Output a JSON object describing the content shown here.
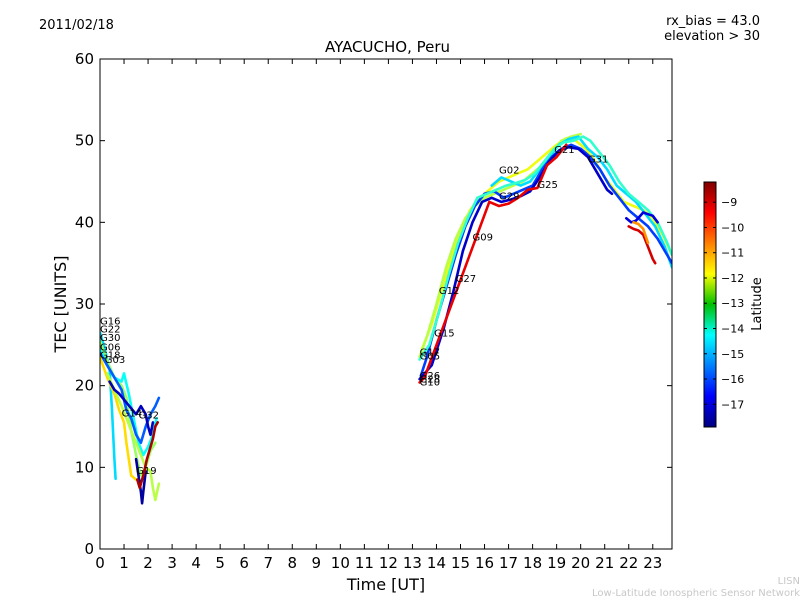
{
  "header": {
    "date": "2011/02/18",
    "rx_bias": "rx_bias = 43.0",
    "elevation": "elevation > 30",
    "station_title": "AYACUCHO, Peru"
  },
  "footer": {
    "network_short": "LISN",
    "network_full": "Low-Latitude Ionospheric Sensor Network"
  },
  "chart_data": {
    "type": "scatter",
    "title": "AYACUCHO, Peru",
    "xlabel": "Time [UT]",
    "ylabel": "TEC [UNITS]",
    "xlim": [
      0,
      23.8
    ],
    "ylim": [
      0,
      60
    ],
    "xticks": [
      "0",
      "1",
      "2",
      "3",
      "4",
      "5",
      "6",
      "7",
      "8",
      "9",
      "10",
      "11",
      "12",
      "13",
      "14",
      "15",
      "16",
      "17",
      "18",
      "19",
      "20",
      "21",
      "22",
      "23"
    ],
    "yticks": [
      "0",
      "10",
      "20",
      "30",
      "40",
      "50",
      "60"
    ],
    "colorbar": {
      "label": "Latitude",
      "range": [
        -17.9,
        -8.2
      ],
      "ticks": [
        "-9",
        "-10",
        "-11",
        "-12",
        "-13",
        "-14",
        "-15",
        "-16",
        "-17"
      ],
      "colormap": "jet",
      "position": "right"
    },
    "grid": false,
    "satellite_labels": [
      {
        "prn": "G16",
        "time": 0.0,
        "tec": 27.5
      },
      {
        "prn": "G22",
        "time": 0.0,
        "tec": 26.5
      },
      {
        "prn": "G30",
        "time": 0.0,
        "tec": 25.5
      },
      {
        "prn": "G06",
        "time": 0.0,
        "tec": 24.3
      },
      {
        "prn": "G18",
        "time": 0.0,
        "tec": 23.3
      },
      {
        "prn": "G03",
        "time": 0.2,
        "tec": 22.8
      },
      {
        "prn": "G14",
        "time": 0.9,
        "tec": 16.2
      },
      {
        "prn": "G32",
        "time": 1.6,
        "tec": 16.0
      },
      {
        "prn": "G19",
        "time": 1.5,
        "tec": 9.2
      },
      {
        "prn": "G17",
        "time": 13.3,
        "tec": 23.7
      },
      {
        "prn": "G05",
        "time": 13.3,
        "tec": 23.2
      },
      {
        "prn": "G26",
        "time": 13.3,
        "tec": 20.8
      },
      {
        "prn": "G28",
        "time": 13.3,
        "tec": 20.4
      },
      {
        "prn": "G10",
        "time": 13.3,
        "tec": 20.0
      },
      {
        "prn": "G15",
        "time": 13.9,
        "tec": 26.0
      },
      {
        "prn": "G12",
        "time": 14.1,
        "tec": 31.2
      },
      {
        "prn": "G27",
        "time": 14.8,
        "tec": 32.7
      },
      {
        "prn": "G09",
        "time": 15.5,
        "tec": 37.8
      },
      {
        "prn": "G29",
        "time": 16.6,
        "tec": 42.8
      },
      {
        "prn": "G02",
        "time": 16.6,
        "tec": 46.0
      },
      {
        "prn": "G25",
        "time": 18.2,
        "tec": 44.2
      },
      {
        "prn": "G21",
        "time": 18.9,
        "tec": 48.5
      },
      {
        "prn": "G31",
        "time": 20.3,
        "tec": 47.3
      }
    ],
    "series": [
      {
        "lat": -14.6,
        "points": [
          [
            0.0,
            26.5
          ],
          [
            0.2,
            24.5
          ],
          [
            0.4,
            22.0
          ],
          [
            0.5,
            17.0
          ],
          [
            0.6,
            11.0
          ],
          [
            0.65,
            8.6
          ]
        ]
      },
      {
        "lat": -12.8,
        "points": [
          [
            0.0,
            25.5
          ],
          [
            0.3,
            23.0
          ],
          [
            0.6,
            21.0
          ],
          [
            0.9,
            20.0
          ],
          [
            1.1,
            18.5
          ],
          [
            1.3,
            14.5
          ],
          [
            1.5,
            11.5
          ],
          [
            1.7,
            9.0
          ],
          [
            1.9,
            10.0
          ],
          [
            2.1,
            12.0
          ],
          [
            2.3,
            13.0
          ]
        ]
      },
      {
        "lat": -14.2,
        "points": [
          [
            0.0,
            24.5
          ],
          [
            0.3,
            22.5
          ],
          [
            0.6,
            21.0
          ],
          [
            0.9,
            20.5
          ],
          [
            1.0,
            21.5
          ],
          [
            1.2,
            19.0
          ],
          [
            1.4,
            16.0
          ],
          [
            1.6,
            13.0
          ],
          [
            1.8,
            11.5
          ],
          [
            2.0,
            12.5
          ],
          [
            2.2,
            14.0
          ],
          [
            2.35,
            16.0
          ]
        ]
      },
      {
        "lat": -15.8,
        "points": [
          [
            0.0,
            24.0
          ],
          [
            0.3,
            22.5
          ],
          [
            0.6,
            21.0
          ],
          [
            0.9,
            19.5
          ],
          [
            1.1,
            17.0
          ],
          [
            1.3,
            16.0
          ],
          [
            1.5,
            14.0
          ],
          [
            1.7,
            13.0
          ],
          [
            1.9,
            15.0
          ],
          [
            2.1,
            16.5
          ],
          [
            2.3,
            17.5
          ],
          [
            2.45,
            18.5
          ]
        ]
      },
      {
        "lat": -11.5,
        "points": [
          [
            0.0,
            23.5
          ],
          [
            0.3,
            21.0
          ],
          [
            0.6,
            19.0
          ],
          [
            0.8,
            17.0
          ],
          [
            1.0,
            15.5
          ],
          [
            1.1,
            13.0
          ],
          [
            1.2,
            11.0
          ],
          [
            1.3,
            9.0
          ],
          [
            1.5,
            8.5
          ]
        ]
      },
      {
        "lat": -12.5,
        "points": [
          [
            0.3,
            21.5
          ],
          [
            0.6,
            19.5
          ],
          [
            0.9,
            17.5
          ],
          [
            1.1,
            16.0
          ],
          [
            1.3,
            14.5
          ],
          [
            1.5,
            13.0
          ],
          [
            1.7,
            11.5
          ],
          [
            1.9,
            10.0
          ],
          [
            2.1,
            9.5
          ],
          [
            2.2,
            7.5
          ],
          [
            2.3,
            6.0
          ],
          [
            2.45,
            8.0
          ]
        ]
      },
      {
        "lat": -17.3,
        "points": [
          [
            0.4,
            20.5
          ],
          [
            0.6,
            19.5
          ],
          [
            0.8,
            19.0
          ],
          [
            1.5,
            16.5
          ],
          [
            1.7,
            17.5
          ],
          [
            1.9,
            16.5
          ],
          [
            2.0,
            15.0
          ],
          [
            2.1,
            14.0
          ],
          [
            2.2,
            15.5
          ]
        ]
      },
      {
        "lat": -17.6,
        "points": [
          [
            1.5,
            11.0
          ],
          [
            1.6,
            9.0
          ],
          [
            1.7,
            7.0
          ],
          [
            1.75,
            5.6
          ],
          [
            1.8,
            7.0
          ],
          [
            1.9,
            9.5
          ]
        ]
      },
      {
        "lat": -8.6,
        "points": [
          [
            1.55,
            8.5
          ],
          [
            1.65,
            7.5
          ],
          [
            1.8,
            9.0
          ],
          [
            1.95,
            11.0
          ],
          [
            2.05,
            12.0
          ],
          [
            2.2,
            13.5
          ],
          [
            2.3,
            15.0
          ],
          [
            2.4,
            15.5
          ]
        ]
      },
      {
        "lat": -12.0,
        "points": [
          [
            13.4,
            24.5
          ],
          [
            13.8,
            27.5
          ],
          [
            14.2,
            31.5
          ],
          [
            14.6,
            35.5
          ],
          [
            15.0,
            39.0
          ],
          [
            15.4,
            41.5
          ],
          [
            15.8,
            43.0
          ],
          [
            16.2,
            44.0
          ],
          [
            16.6,
            45.0
          ],
          [
            17.0,
            45.5
          ],
          [
            17.4,
            46.0
          ],
          [
            17.8,
            46.5
          ],
          [
            18.2,
            47.5
          ],
          [
            18.6,
            48.5
          ],
          [
            19.0,
            49.5
          ],
          [
            19.4,
            50.3
          ],
          [
            19.8,
            50.0
          ],
          [
            20.2,
            49.0
          ],
          [
            20.6,
            47.5
          ],
          [
            21.0,
            45.5
          ],
          [
            21.4,
            44.0
          ],
          [
            21.8,
            42.5
          ],
          [
            22.2,
            42.0
          ],
          [
            22.6,
            41.5
          ],
          [
            23.0,
            40.5
          ],
          [
            23.4,
            38.5
          ],
          [
            23.8,
            36.0
          ]
        ]
      },
      {
        "lat": -12.5,
        "points": [
          [
            13.3,
            23.5
          ],
          [
            13.6,
            26.0
          ],
          [
            14.0,
            30.0
          ],
          [
            14.4,
            34.5
          ],
          [
            14.8,
            38.0
          ],
          [
            15.2,
            40.5
          ],
          [
            15.6,
            42.0
          ],
          [
            16.0,
            43.0
          ],
          [
            16.4,
            43.5
          ],
          [
            16.8,
            44.0
          ],
          [
            17.2,
            44.5
          ],
          [
            17.6,
            45.0
          ],
          [
            18.0,
            46.0
          ],
          [
            18.4,
            47.0
          ],
          [
            18.8,
            48.5
          ],
          [
            19.2,
            50.0
          ],
          [
            19.6,
            50.5
          ],
          [
            20.0,
            50.8
          ]
        ]
      },
      {
        "lat": -14.6,
        "points": [
          [
            16.3,
            44.5
          ],
          [
            16.7,
            45.5
          ],
          [
            17.1,
            45.0
          ],
          [
            17.5,
            44.5
          ],
          [
            17.9,
            45.0
          ],
          [
            18.3,
            46.5
          ],
          [
            18.7,
            48.0
          ],
          [
            19.1,
            49.5
          ],
          [
            19.5,
            50.2
          ],
          [
            19.9,
            50.5
          ],
          [
            20.3,
            49.0
          ],
          [
            20.7,
            48.0
          ],
          [
            21.1,
            46.5
          ],
          [
            21.5,
            44.5
          ],
          [
            21.9,
            43.5
          ],
          [
            22.3,
            42.5
          ],
          [
            22.7,
            41.0
          ],
          [
            23.1,
            39.5
          ],
          [
            23.5,
            37.0
          ],
          [
            23.8,
            34.5
          ]
        ]
      },
      {
        "lat": -16.1,
        "points": [
          [
            13.35,
            21.2
          ],
          [
            13.6,
            23.5
          ],
          [
            14.0,
            28.0
          ],
          [
            14.4,
            32.0
          ],
          [
            14.8,
            36.0
          ],
          [
            15.2,
            39.5
          ],
          [
            15.6,
            42.0
          ],
          [
            16.0,
            43.5
          ],
          [
            16.4,
            43.8
          ],
          [
            16.8,
            43.0
          ],
          [
            17.2,
            43.5
          ],
          [
            17.6,
            44.0
          ],
          [
            18.0,
            44.5
          ],
          [
            18.4,
            46.5
          ],
          [
            18.8,
            48.0
          ],
          [
            19.2,
            49.0
          ],
          [
            19.6,
            49.5
          ],
          [
            20.0,
            49.0
          ],
          [
            20.4,
            48.0
          ],
          [
            20.8,
            46.5
          ],
          [
            21.2,
            44.5
          ],
          [
            21.6,
            43.0
          ],
          [
            22.0,
            41.5
          ],
          [
            22.4,
            40.5
          ],
          [
            22.8,
            39.5
          ],
          [
            23.2,
            38.0
          ],
          [
            23.6,
            36.0
          ],
          [
            23.8,
            35.0
          ]
        ]
      },
      {
        "lat": -17.2,
        "points": [
          [
            13.3,
            20.8
          ],
          [
            13.8,
            22.5
          ],
          [
            14.3,
            27.0
          ],
          [
            14.7,
            31.5
          ],
          [
            15.1,
            36.5
          ],
          [
            15.5,
            40.0
          ],
          [
            15.9,
            42.5
          ],
          [
            16.3,
            43.0
          ],
          [
            16.7,
            42.5
          ],
          [
            17.1,
            42.8
          ],
          [
            17.5,
            43.2
          ],
          [
            17.9,
            43.8
          ],
          [
            18.3,
            45.5
          ],
          [
            18.7,
            47.5
          ],
          [
            19.1,
            48.8
          ],
          [
            19.5,
            49.2
          ],
          [
            19.9,
            49.0
          ],
          [
            20.3,
            48.0
          ],
          [
            20.7,
            46.0
          ],
          [
            21.1,
            44.0
          ],
          [
            21.3,
            43.5
          ]
        ]
      },
      {
        "lat": -9.2,
        "points": [
          [
            13.3,
            20.4
          ],
          [
            13.5,
            21.0
          ],
          [
            16.2,
            42.5
          ],
          [
            16.6,
            42.0
          ],
          [
            17.0,
            42.3
          ],
          [
            17.4,
            43.0
          ],
          [
            17.8,
            44.0
          ],
          [
            18.2,
            44.2
          ],
          [
            18.6,
            47.0
          ],
          [
            19.0,
            48.0
          ],
          [
            19.4,
            49.5
          ]
        ]
      },
      {
        "lat": -13.8,
        "points": [
          [
            13.3,
            23.2
          ],
          [
            13.7,
            25.0
          ],
          [
            14.1,
            29.0
          ],
          [
            14.5,
            33.5
          ],
          [
            14.9,
            37.5
          ],
          [
            15.3,
            40.5
          ],
          [
            15.7,
            43.0
          ],
          [
            16.1,
            43.5
          ],
          [
            16.5,
            44.0
          ],
          [
            16.9,
            44.5
          ],
          [
            17.3,
            44.8
          ],
          [
            17.7,
            45.2
          ],
          [
            18.1,
            46.0
          ],
          [
            18.5,
            47.5
          ],
          [
            18.9,
            49.0
          ],
          [
            19.3,
            49.8
          ],
          [
            19.7,
            50.0
          ],
          [
            20.1,
            50.5
          ],
          [
            20.4,
            50.0
          ],
          [
            20.8,
            48.5
          ],
          [
            21.2,
            47.0
          ],
          [
            21.6,
            45.0
          ],
          [
            22.0,
            43.5
          ],
          [
            22.4,
            42.5
          ],
          [
            22.8,
            41.5
          ],
          [
            23.2,
            40.0
          ],
          [
            23.6,
            37.5
          ],
          [
            23.8,
            36.0
          ]
        ]
      },
      {
        "lat": -17.0,
        "points": [
          [
            21.9,
            40.5
          ],
          [
            22.1,
            40.0
          ],
          [
            22.3,
            40.2
          ],
          [
            22.6,
            41.2
          ],
          [
            22.8,
            41.0
          ],
          [
            23.0,
            40.8
          ],
          [
            23.2,
            40.0
          ]
        ]
      },
      {
        "lat": -9.0,
        "points": [
          [
            22.0,
            39.5
          ],
          [
            22.2,
            39.2
          ],
          [
            22.4,
            39.0
          ],
          [
            22.6,
            38.5
          ],
          [
            22.8,
            37.0
          ],
          [
            23.0,
            35.5
          ],
          [
            23.1,
            35.0
          ]
        ]
      },
      {
        "lat": -10.8,
        "points": [
          [
            22.2,
            40.0
          ],
          [
            22.4,
            39.8
          ],
          [
            22.6,
            39.2
          ],
          [
            22.8,
            37.5
          ]
        ]
      }
    ]
  }
}
